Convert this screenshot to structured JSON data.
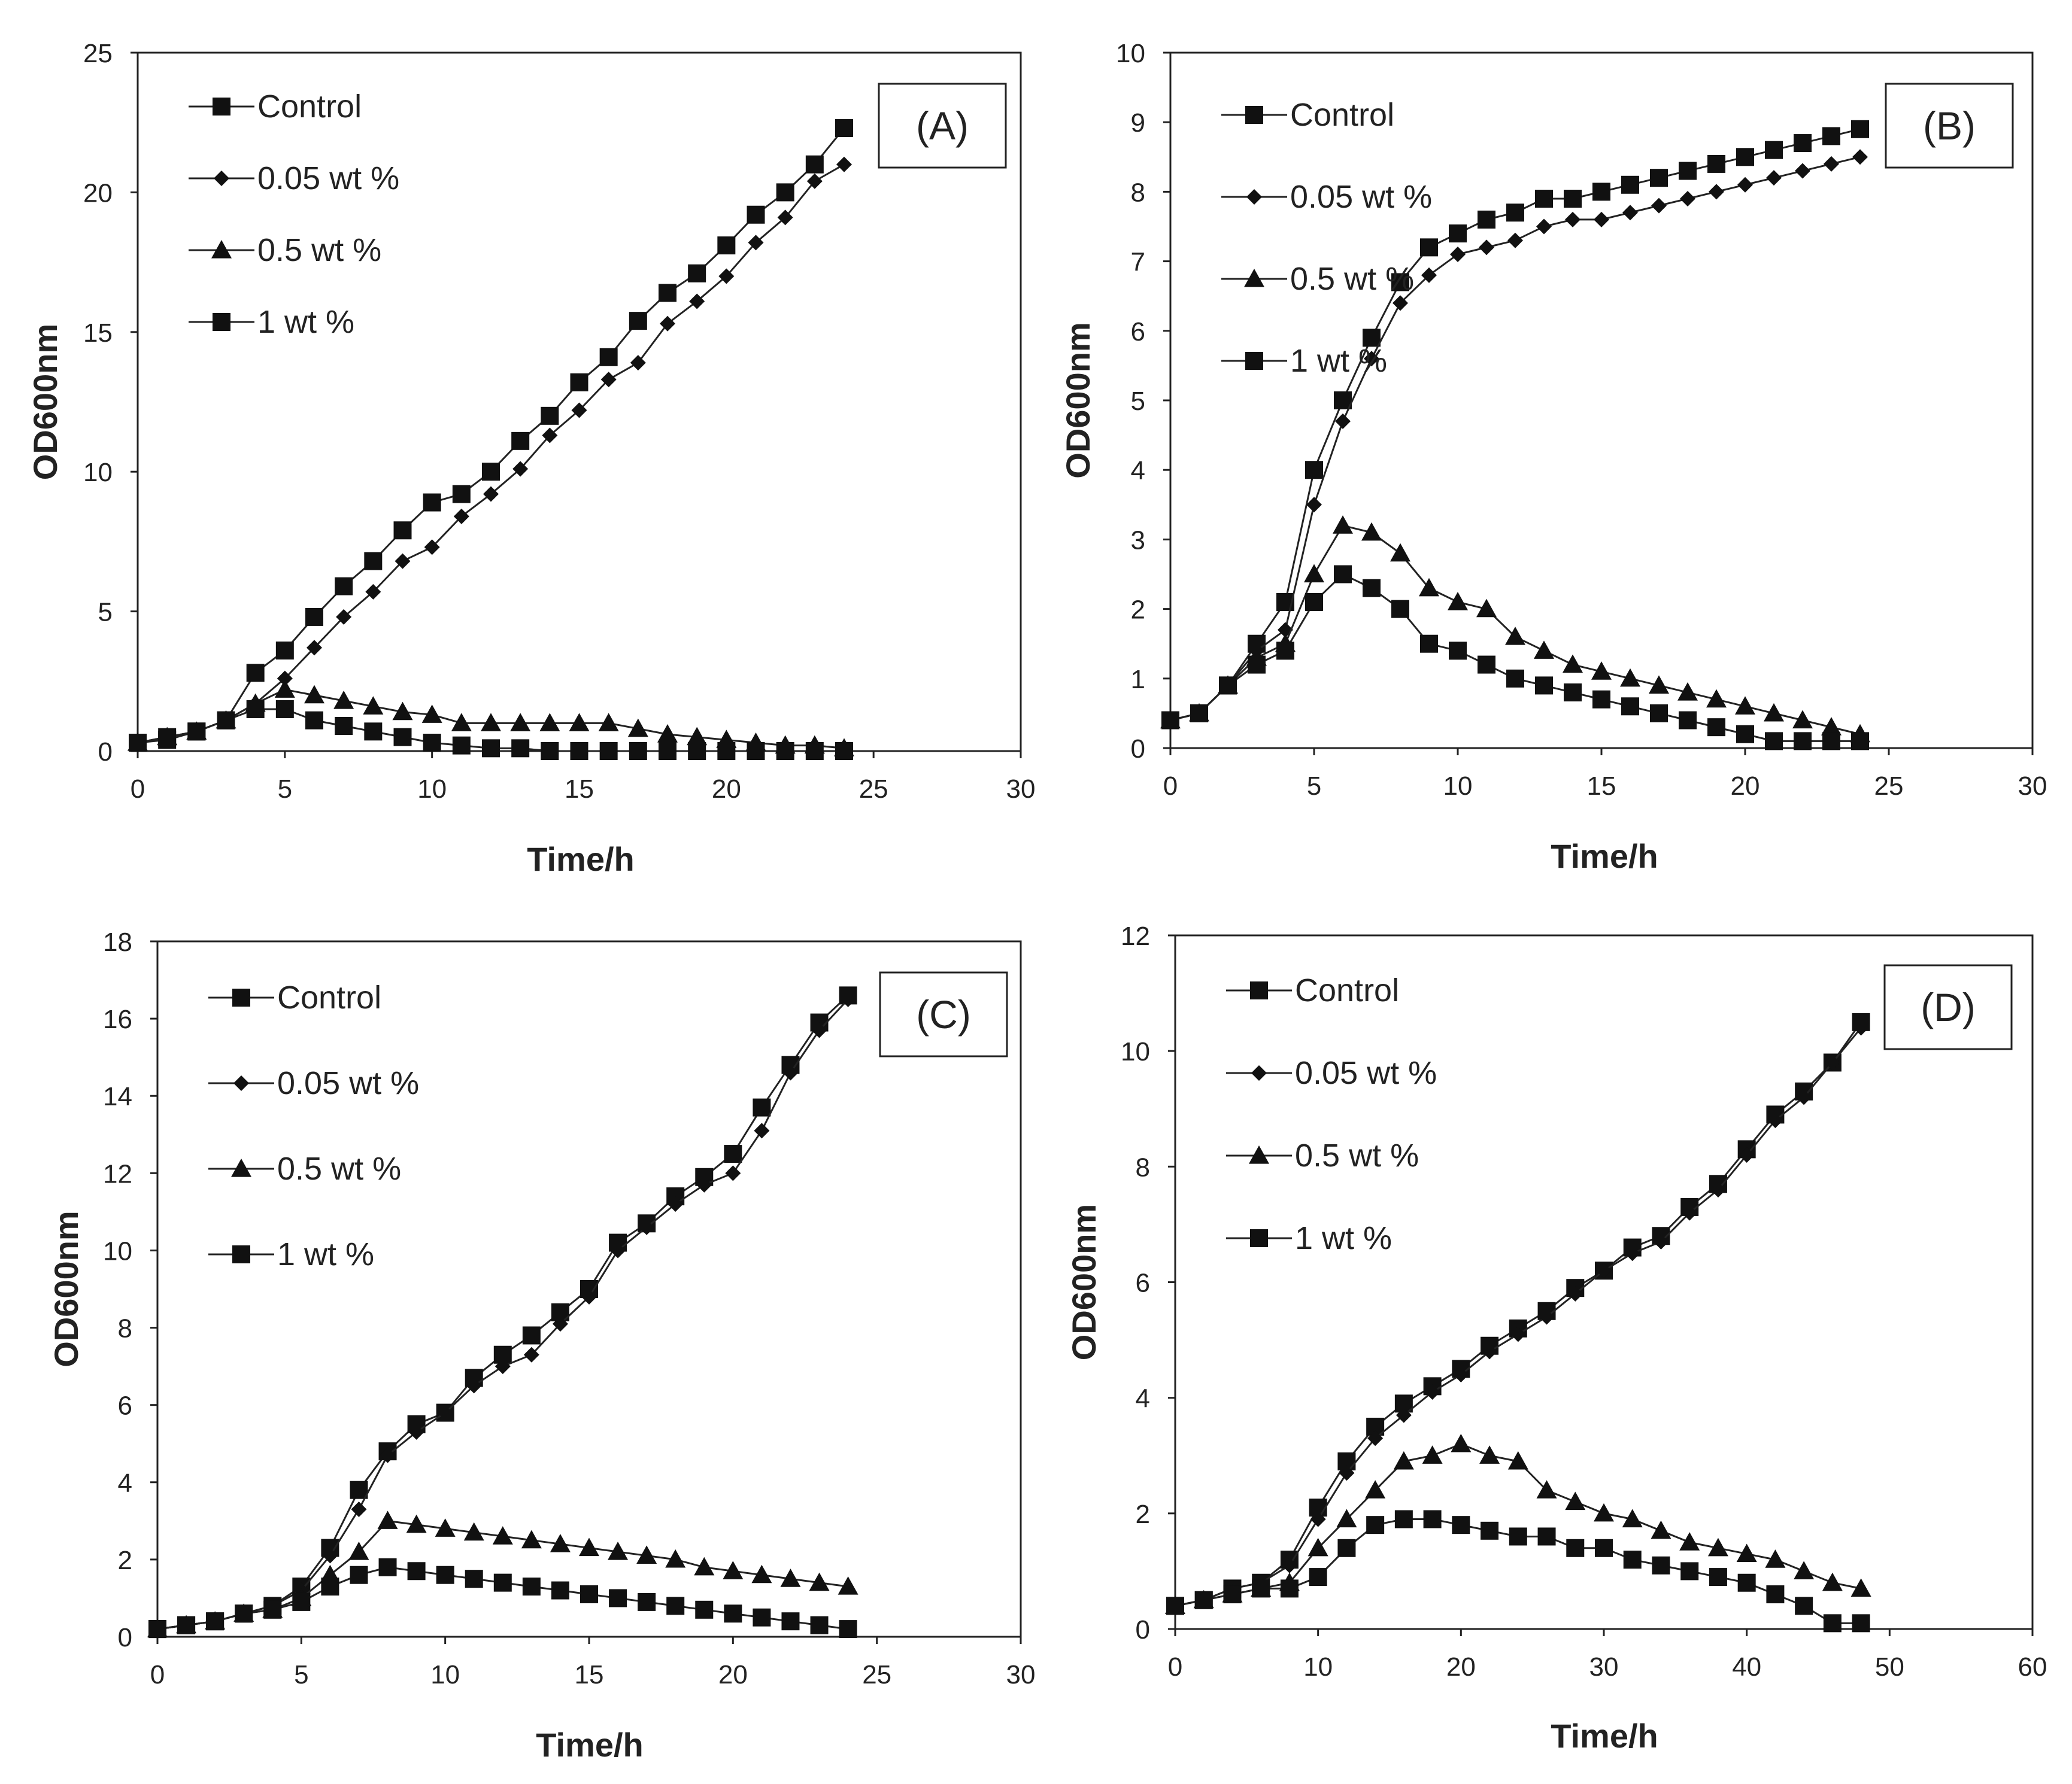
{
  "chart_data": [
    {
      "type": "line",
      "panel_label": "(A)",
      "xlabel": "Time/h",
      "ylabel": "OD600nm",
      "xlim": [
        0,
        30
      ],
      "ylim": [
        0,
        25
      ],
      "xticks": [
        0,
        5,
        10,
        15,
        20,
        25,
        30
      ],
      "yticks": [
        0,
        5,
        10,
        15,
        20,
        25
      ],
      "legend_position": "top-left",
      "series": [
        {
          "name": "Control",
          "marker": "square",
          "x": [
            0,
            1,
            2,
            3,
            4,
            5,
            6,
            7,
            8,
            9,
            10,
            11,
            12,
            13,
            14,
            15,
            16,
            17,
            18,
            19,
            20,
            21,
            22,
            23,
            24
          ],
          "y": [
            0.3,
            0.5,
            0.7,
            1.1,
            2.8,
            3.6,
            4.8,
            5.9,
            6.8,
            7.9,
            8.9,
            9.2,
            10.0,
            11.1,
            12.0,
            13.2,
            14.1,
            15.4,
            16.4,
            17.1,
            18.1,
            19.2,
            20.0,
            21.0,
            22.3
          ]
        },
        {
          "name": "0.05 wt %",
          "marker": "diamond",
          "x": [
            0,
            1,
            2,
            3,
            4,
            5,
            6,
            7,
            8,
            9,
            10,
            11,
            12,
            13,
            14,
            15,
            16,
            17,
            18,
            19,
            20,
            21,
            22,
            23,
            24
          ],
          "y": [
            0.3,
            0.5,
            0.7,
            1.1,
            1.7,
            2.6,
            3.7,
            4.8,
            5.7,
            6.8,
            7.3,
            8.4,
            9.2,
            10.1,
            11.3,
            12.2,
            13.3,
            13.9,
            15.3,
            16.1,
            17.0,
            18.2,
            19.1,
            20.4,
            21.0
          ]
        },
        {
          "name": "0.5 wt %",
          "marker": "triangle",
          "x": [
            0,
            1,
            2,
            3,
            4,
            5,
            6,
            7,
            8,
            9,
            10,
            11,
            12,
            13,
            14,
            15,
            16,
            17,
            18,
            19,
            20,
            21,
            22,
            23,
            24
          ],
          "y": [
            0.3,
            0.5,
            0.7,
            1.1,
            1.7,
            2.2,
            2.0,
            1.8,
            1.6,
            1.4,
            1.3,
            1.0,
            1.0,
            1.0,
            1.0,
            1.0,
            1.0,
            0.8,
            0.6,
            0.5,
            0.4,
            0.3,
            0.2,
            0.2,
            0.1
          ]
        },
        {
          "name": "1 wt %",
          "marker": "square",
          "x": [
            0,
            1,
            2,
            3,
            4,
            5,
            6,
            7,
            8,
            9,
            10,
            11,
            12,
            13,
            14,
            15,
            16,
            17,
            18,
            19,
            20,
            21,
            22,
            23,
            24
          ],
          "y": [
            0.3,
            0.4,
            0.7,
            1.1,
            1.5,
            1.5,
            1.1,
            0.9,
            0.7,
            0.5,
            0.3,
            0.2,
            0.1,
            0.1,
            0.0,
            0.0,
            0.0,
            0.0,
            0.0,
            0.0,
            0.0,
            0.0,
            0.0,
            0.0,
            0.0
          ]
        }
      ]
    },
    {
      "type": "line",
      "panel_label": "(B)",
      "xlabel": "Time/h",
      "ylabel": "OD600nm",
      "xlim": [
        0,
        30
      ],
      "ylim": [
        0,
        10
      ],
      "xticks": [
        0,
        5,
        10,
        15,
        20,
        25,
        30
      ],
      "yticks": [
        0,
        1,
        2,
        3,
        4,
        5,
        6,
        7,
        8,
        9,
        10
      ],
      "legend_position": "top-left",
      "series": [
        {
          "name": "Control",
          "marker": "square",
          "x": [
            0,
            1,
            2,
            3,
            4,
            5,
            6,
            7,
            8,
            9,
            10,
            11,
            12,
            13,
            14,
            15,
            16,
            17,
            18,
            19,
            20,
            21,
            22,
            23,
            24
          ],
          "y": [
            0.4,
            0.5,
            0.9,
            1.5,
            2.1,
            4.0,
            5.0,
            5.9,
            6.7,
            7.2,
            7.4,
            7.6,
            7.7,
            7.9,
            7.9,
            8.0,
            8.1,
            8.2,
            8.3,
            8.4,
            8.5,
            8.6,
            8.7,
            8.8,
            8.9
          ]
        },
        {
          "name": "0.05 wt %",
          "marker": "diamond",
          "x": [
            0,
            1,
            2,
            3,
            4,
            5,
            6,
            7,
            8,
            9,
            10,
            11,
            12,
            13,
            14,
            15,
            16,
            17,
            18,
            19,
            20,
            21,
            22,
            23,
            24
          ],
          "y": [
            0.4,
            0.5,
            0.9,
            1.4,
            1.7,
            3.5,
            4.7,
            5.6,
            6.4,
            6.8,
            7.1,
            7.2,
            7.3,
            7.5,
            7.6,
            7.6,
            7.7,
            7.8,
            7.9,
            8.0,
            8.1,
            8.2,
            8.3,
            8.4,
            8.5
          ]
        },
        {
          "name": "0.5 wt %",
          "marker": "triangle",
          "x": [
            0,
            1,
            2,
            3,
            4,
            5,
            6,
            7,
            8,
            9,
            10,
            11,
            12,
            13,
            14,
            15,
            16,
            17,
            18,
            19,
            20,
            21,
            22,
            23,
            24
          ],
          "y": [
            0.4,
            0.5,
            0.9,
            1.3,
            1.5,
            2.5,
            3.2,
            3.1,
            2.8,
            2.3,
            2.1,
            2.0,
            1.6,
            1.4,
            1.2,
            1.1,
            1.0,
            0.9,
            0.8,
            0.7,
            0.6,
            0.5,
            0.4,
            0.3,
            0.2
          ]
        },
        {
          "name": "1 wt %",
          "marker": "square",
          "x": [
            0,
            1,
            2,
            3,
            4,
            5,
            6,
            7,
            8,
            9,
            10,
            11,
            12,
            13,
            14,
            15,
            16,
            17,
            18,
            19,
            20,
            21,
            22,
            23,
            24
          ],
          "y": [
            0.4,
            0.5,
            0.9,
            1.2,
            1.4,
            2.1,
            2.5,
            2.3,
            2.0,
            1.5,
            1.4,
            1.2,
            1.0,
            0.9,
            0.8,
            0.7,
            0.6,
            0.5,
            0.4,
            0.3,
            0.2,
            0.1,
            0.1,
            0.1,
            0.1
          ]
        }
      ]
    },
    {
      "type": "line",
      "panel_label": "(C)",
      "xlabel": "Time/h",
      "ylabel": "OD600nm",
      "xlim": [
        0,
        30
      ],
      "ylim": [
        0,
        18
      ],
      "xticks": [
        0,
        5,
        10,
        15,
        20,
        25,
        30
      ],
      "yticks": [
        0,
        2,
        4,
        6,
        8,
        10,
        12,
        14,
        16,
        18
      ],
      "legend_position": "top-left",
      "series": [
        {
          "name": "Control",
          "marker": "square",
          "x": [
            0,
            1,
            2,
            3,
            4,
            5,
            6,
            7,
            8,
            9,
            10,
            11,
            12,
            13,
            14,
            15,
            16,
            17,
            18,
            19,
            20,
            21,
            22,
            23,
            24
          ],
          "y": [
            0.2,
            0.3,
            0.4,
            0.6,
            0.8,
            1.3,
            2.3,
            3.8,
            4.8,
            5.5,
            5.8,
            6.7,
            7.3,
            7.8,
            8.4,
            9.0,
            10.2,
            10.7,
            11.4,
            11.9,
            12.5,
            13.7,
            14.8,
            15.9,
            16.6
          ]
        },
        {
          "name": "0.05 wt %",
          "marker": "diamond",
          "x": [
            0,
            1,
            2,
            3,
            4,
            5,
            6,
            7,
            8,
            9,
            10,
            11,
            12,
            13,
            14,
            15,
            16,
            17,
            18,
            19,
            20,
            21,
            22,
            23,
            24
          ],
          "y": [
            0.2,
            0.3,
            0.4,
            0.6,
            0.8,
            1.2,
            2.1,
            3.3,
            4.7,
            5.3,
            5.8,
            6.5,
            7.0,
            7.3,
            8.1,
            8.8,
            10.0,
            10.6,
            11.2,
            11.7,
            12.0,
            13.1,
            14.6,
            15.7,
            16.5
          ]
        },
        {
          "name": "0.5 wt %",
          "marker": "triangle",
          "x": [
            0,
            1,
            2,
            3,
            4,
            5,
            6,
            7,
            8,
            9,
            10,
            11,
            12,
            13,
            14,
            15,
            16,
            17,
            18,
            19,
            20,
            21,
            22,
            23,
            24
          ],
          "y": [
            0.2,
            0.3,
            0.4,
            0.6,
            0.7,
            1.0,
            1.6,
            2.2,
            3.0,
            2.9,
            2.8,
            2.7,
            2.6,
            2.5,
            2.4,
            2.3,
            2.2,
            2.1,
            2.0,
            1.8,
            1.7,
            1.6,
            1.5,
            1.4,
            1.3
          ]
        },
        {
          "name": "1 wt %",
          "marker": "square",
          "x": [
            0,
            1,
            2,
            3,
            4,
            5,
            6,
            7,
            8,
            9,
            10,
            11,
            12,
            13,
            14,
            15,
            16,
            17,
            18,
            19,
            20,
            21,
            22,
            23,
            24
          ],
          "y": [
            0.2,
            0.3,
            0.4,
            0.6,
            0.7,
            0.9,
            1.3,
            1.6,
            1.8,
            1.7,
            1.6,
            1.5,
            1.4,
            1.3,
            1.2,
            1.1,
            1.0,
            0.9,
            0.8,
            0.7,
            0.6,
            0.5,
            0.4,
            0.3,
            0.2
          ]
        }
      ]
    },
    {
      "type": "line",
      "panel_label": "(D)",
      "xlabel": "Time/h",
      "ylabel": "OD600nm",
      "xlim": [
        0,
        60
      ],
      "ylim": [
        0,
        12
      ],
      "xticks": [
        0,
        10,
        20,
        30,
        40,
        50,
        60
      ],
      "yticks": [
        0,
        2,
        4,
        6,
        8,
        10,
        12
      ],
      "legend_position": "top-left",
      "series": [
        {
          "name": "Control",
          "marker": "square",
          "x": [
            0,
            2,
            4,
            6,
            8,
            10,
            12,
            14,
            16,
            18,
            20,
            22,
            24,
            26,
            28,
            30,
            32,
            34,
            36,
            38,
            40,
            42,
            44,
            46,
            48
          ],
          "y": [
            0.4,
            0.5,
            0.7,
            0.8,
            1.2,
            2.1,
            2.9,
            3.5,
            3.9,
            4.2,
            4.5,
            4.9,
            5.2,
            5.5,
            5.9,
            6.2,
            6.6,
            6.8,
            7.3,
            7.7,
            8.3,
            8.9,
            9.3,
            9.8,
            10.5
          ]
        },
        {
          "name": "0.05 wt %",
          "marker": "diamond",
          "x": [
            0,
            2,
            4,
            6,
            8,
            10,
            12,
            14,
            16,
            18,
            20,
            22,
            24,
            26,
            28,
            30,
            32,
            34,
            36,
            38,
            40,
            42,
            44,
            46,
            48
          ],
          "y": [
            0.4,
            0.5,
            0.7,
            0.8,
            1.1,
            1.9,
            2.7,
            3.3,
            3.7,
            4.1,
            4.4,
            4.8,
            5.1,
            5.4,
            5.8,
            6.2,
            6.5,
            6.7,
            7.2,
            7.6,
            8.2,
            8.8,
            9.2,
            9.8,
            10.4
          ]
        },
        {
          "name": "0.5 wt %",
          "marker": "triangle",
          "x": [
            0,
            2,
            4,
            6,
            8,
            10,
            12,
            14,
            16,
            18,
            20,
            22,
            24,
            26,
            28,
            30,
            32,
            34,
            36,
            38,
            40,
            42,
            44,
            46,
            48
          ],
          "y": [
            0.4,
            0.5,
            0.6,
            0.7,
            0.8,
            1.4,
            1.9,
            2.4,
            2.9,
            3.0,
            3.2,
            3.0,
            2.9,
            2.4,
            2.2,
            2.0,
            1.9,
            1.7,
            1.5,
            1.4,
            1.3,
            1.2,
            1.0,
            0.8,
            0.7
          ]
        },
        {
          "name": "1 wt %",
          "marker": "square",
          "x": [
            0,
            2,
            4,
            6,
            8,
            10,
            12,
            14,
            16,
            18,
            20,
            22,
            24,
            26,
            28,
            30,
            32,
            34,
            36,
            38,
            40,
            42,
            44,
            46,
            48
          ],
          "y": [
            0.4,
            0.5,
            0.6,
            0.7,
            0.7,
            0.9,
            1.4,
            1.8,
            1.9,
            1.9,
            1.8,
            1.7,
            1.6,
            1.6,
            1.4,
            1.4,
            1.2,
            1.1,
            1.0,
            0.9,
            0.8,
            0.6,
            0.4,
            0.1,
            0.1
          ]
        }
      ]
    }
  ]
}
